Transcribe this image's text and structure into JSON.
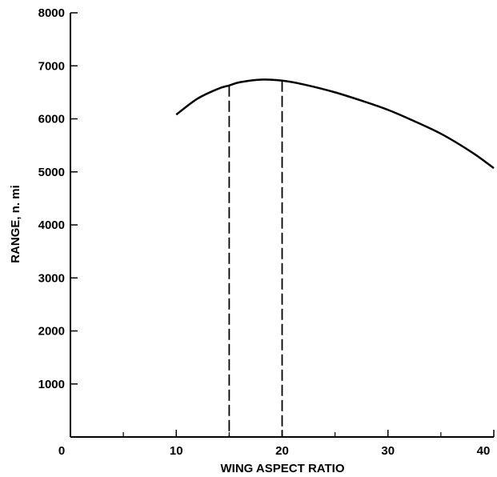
{
  "chart_data": {
    "type": "line",
    "title": "",
    "xlabel": "WING ASPECT RATIO",
    "ylabel": "RANGE, n. mi",
    "xlim": [
      0,
      40
    ],
    "ylim": [
      0,
      8000
    ],
    "x_ticks_major": [
      0,
      10,
      20,
      30,
      40
    ],
    "x_ticks_minor": [
      5,
      15,
      25,
      35
    ],
    "y_ticks": [
      1000,
      2000,
      3000,
      4000,
      5000,
      6000,
      7000,
      8000
    ],
    "y_tick_labels": [
      "1000",
      "2000",
      "3000",
      "4000",
      "5000",
      "6000",
      "7000",
      "8000"
    ],
    "origin_label": "0",
    "x_tick_labels": [
      "10",
      "20",
      "30",
      "40"
    ],
    "grid": false,
    "series": [
      {
        "color": "#000000",
        "x": [
          10,
          12,
          14,
          15,
          16,
          18,
          20,
          22,
          25,
          28,
          30,
          32,
          35,
          38,
          40
        ],
        "y": [
          6080,
          6380,
          6570,
          6630,
          6690,
          6740,
          6720,
          6650,
          6500,
          6310,
          6170,
          6000,
          5720,
          5360,
          5070
        ]
      }
    ],
    "reference_lines": [
      {
        "x": 15,
        "style": "dashed"
      },
      {
        "x": 20,
        "style": "dashed"
      }
    ]
  }
}
